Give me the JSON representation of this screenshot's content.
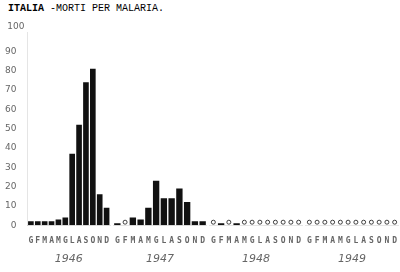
{
  "chart_data": [
    {
      "type": "bar",
      "title": "ITALIA",
      "subtitle": "-MORTI PER MALARIA.",
      "annotation": "100",
      "x_label": "1946",
      "categories": [
        "G",
        "F",
        "M",
        "A",
        "M",
        "G",
        "L",
        "A",
        "S",
        "O",
        "N",
        "D"
      ],
      "values": [
        2,
        2,
        2,
        2,
        3,
        4,
        37,
        52,
        74,
        81,
        16,
        9
      ],
      "color": "#111111",
      "ylim": [
        0,
        100
      ],
      "yticks": [
        0,
        10,
        20,
        30,
        40,
        50,
        60,
        70,
        80,
        90
      ],
      "grid": false
    },
    {
      "type": "bar",
      "x_label": "1947",
      "categories": [
        "G",
        "F",
        "M",
        "A",
        "M",
        "G",
        "L",
        "A",
        "S",
        "O",
        "N",
        "D"
      ],
      "values": [
        1,
        0,
        4,
        3,
        9,
        23,
        14,
        14,
        19,
        12,
        2,
        2
      ],
      "color": "#111111",
      "ylim": [
        0,
        100
      ],
      "grid": false,
      "tick_labels": "x"
    },
    {
      "type": "bar",
      "x_label": "1948",
      "categories": [
        "G",
        "F",
        "M",
        "A",
        "M",
        "G",
        "L",
        "A",
        "S",
        "O",
        "N",
        "D"
      ],
      "values": [
        0,
        1,
        0,
        1,
        0,
        0,
        0,
        0,
        0,
        0,
        0,
        0
      ],
      "color": "#111111",
      "ylim": [
        0,
        100
      ],
      "grid": false,
      "tick_labels": "x"
    },
    {
      "type": "bar",
      "x_label": "1949",
      "categories": [
        "G",
        "F",
        "M",
        "A",
        "M",
        "G",
        "L",
        "A",
        "S",
        "O",
        "N",
        "D"
      ],
      "values": [
        0,
        0,
        0,
        0,
        0,
        0,
        0,
        0,
        0,
        0,
        0,
        0
      ],
      "color": "#111111",
      "ylim": [
        0,
        100
      ],
      "grid": false,
      "tick_labels": "x"
    }
  ]
}
